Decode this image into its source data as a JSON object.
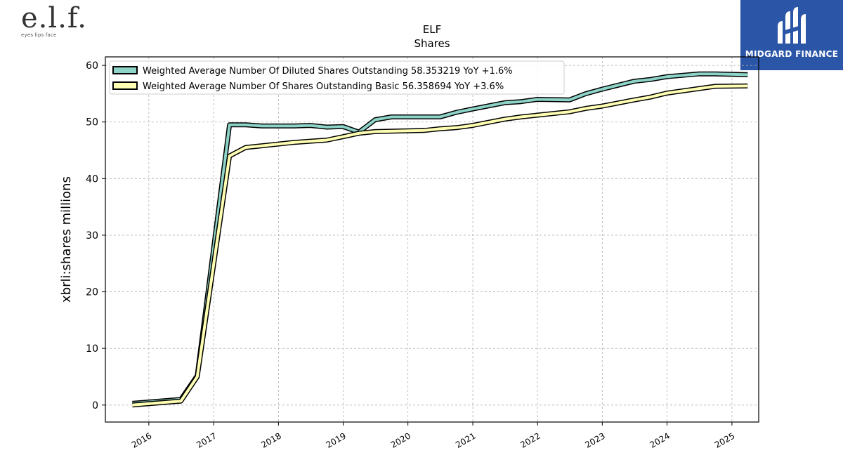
{
  "logos": {
    "left": {
      "mark": "e.l.f.",
      "tagline": "eyes lips face"
    },
    "right": {
      "brand": "MIDGARD FINANCE",
      "bg": "#2b56a8"
    }
  },
  "chart_data": {
    "type": "line",
    "title": "ELF",
    "subtitle": "Shares",
    "xlabel": "",
    "ylabel": "xbrli:shares millions",
    "x_ticks": [
      "2016",
      "2017",
      "2018",
      "2019",
      "2020",
      "2021",
      "2022",
      "2023",
      "2024",
      "2025"
    ],
    "y_ticks": [
      0,
      10,
      20,
      30,
      40,
      50,
      60
    ],
    "xlim": [
      "2015-05-01",
      "2025-06-01"
    ],
    "ylim": [
      -3,
      61.5
    ],
    "grid": true,
    "legend_position": "top-left",
    "series": [
      {
        "name": "Weighted Average Number Of Diluted Shares Outstanding  58.353219 YoY +1.6%",
        "color": "#8dd3c7",
        "points": [
          [
            "2015-09-30",
            0.3
          ],
          [
            "2016-06-30",
            1.0
          ],
          [
            "2016-09-30",
            5.2
          ],
          [
            "2017-03-31",
            49.5
          ],
          [
            "2017-06-30",
            49.5
          ],
          [
            "2017-09-30",
            49.3
          ],
          [
            "2018-03-31",
            49.3
          ],
          [
            "2018-06-30",
            49.4
          ],
          [
            "2018-09-30",
            49.1
          ],
          [
            "2018-12-31",
            49.2
          ],
          [
            "2019-03-31",
            48.2
          ],
          [
            "2019-06-30",
            50.4
          ],
          [
            "2019-09-30",
            50.9
          ],
          [
            "2020-06-30",
            50.9
          ],
          [
            "2020-09-30",
            51.7
          ],
          [
            "2020-12-31",
            52.3
          ],
          [
            "2021-06-30",
            53.4
          ],
          [
            "2021-09-30",
            53.6
          ],
          [
            "2021-12-31",
            54.0
          ],
          [
            "2022-06-30",
            53.9
          ],
          [
            "2022-09-30",
            55.0
          ],
          [
            "2022-12-31",
            55.8
          ],
          [
            "2023-06-30",
            57.2
          ],
          [
            "2023-09-30",
            57.5
          ],
          [
            "2023-12-31",
            58.0
          ],
          [
            "2024-06-30",
            58.5
          ],
          [
            "2024-09-30",
            58.5
          ],
          [
            "2025-03-31",
            58.35
          ]
        ]
      },
      {
        "name": "Weighted Average Number Of Shares Outstanding Basic  56.358694 YoY +3.6%",
        "color": "#ffffb3",
        "points": [
          [
            "2015-09-30",
            0.0
          ],
          [
            "2016-06-30",
            0.7
          ],
          [
            "2016-09-30",
            5.0
          ],
          [
            "2017-03-31",
            44.0
          ],
          [
            "2017-06-30",
            45.5
          ],
          [
            "2017-09-30",
            45.8
          ],
          [
            "2018-03-31",
            46.4
          ],
          [
            "2018-06-30",
            46.6
          ],
          [
            "2018-09-30",
            46.8
          ],
          [
            "2018-12-31",
            47.4
          ],
          [
            "2019-03-31",
            48.0
          ],
          [
            "2019-06-30",
            48.3
          ],
          [
            "2020-03-31",
            48.5
          ],
          [
            "2020-06-30",
            48.8
          ],
          [
            "2020-09-30",
            49.0
          ],
          [
            "2020-12-31",
            49.4
          ],
          [
            "2021-06-30",
            50.5
          ],
          [
            "2021-09-30",
            50.9
          ],
          [
            "2021-12-31",
            51.2
          ],
          [
            "2022-06-30",
            51.8
          ],
          [
            "2022-09-30",
            52.4
          ],
          [
            "2022-12-31",
            52.8
          ],
          [
            "2023-06-30",
            53.9
          ],
          [
            "2023-09-30",
            54.4
          ],
          [
            "2023-12-31",
            55.1
          ],
          [
            "2024-06-30",
            55.9
          ],
          [
            "2024-09-30",
            56.3
          ],
          [
            "2025-03-31",
            56.36
          ]
        ]
      }
    ]
  }
}
